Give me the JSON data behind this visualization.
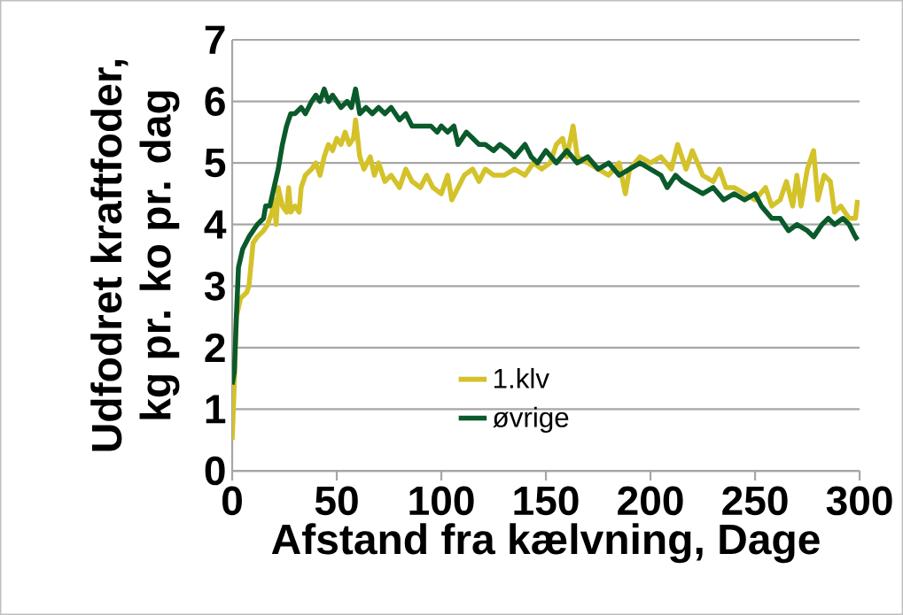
{
  "chart_data": {
    "type": "line",
    "xlabel": "Afstand fra kælvning, Dage",
    "ylabel": "Udfodret kraftfoder, kg pr. ko pr. dag",
    "xlim": [
      0,
      300
    ],
    "xticks": [
      0,
      50,
      100,
      150,
      200,
      250,
      300
    ],
    "ylim": [
      0,
      7
    ],
    "yticks": [
      0,
      1,
      2,
      3,
      4,
      5,
      6,
      7
    ],
    "grid": "y",
    "legend": "bottom",
    "marker": "none",
    "line_style": "solid",
    "series": [
      {
        "name": "1.klv",
        "color": "#d4c22a",
        "x": [
          0,
          1,
          2,
          4,
          7,
          8,
          10,
          12,
          15,
          17,
          19,
          20,
          21,
          22,
          24,
          26,
          27,
          28,
          30,
          32,
          33,
          35,
          38,
          40,
          42,
          44,
          46,
          48,
          50,
          52,
          54,
          56,
          58,
          59,
          61,
          63,
          66,
          68,
          70,
          73,
          76,
          80,
          83,
          86,
          90,
          93,
          96,
          100,
          103,
          105,
          108,
          111,
          115,
          118,
          121,
          125,
          130,
          135,
          140,
          144,
          148,
          152,
          155,
          158,
          160,
          163,
          165,
          170,
          175,
          180,
          185,
          188,
          190,
          195,
          200,
          205,
          210,
          213,
          217,
          220,
          225,
          230,
          233,
          236,
          240,
          245,
          250,
          255,
          258,
          262,
          265,
          268,
          270,
          272,
          275,
          278,
          280,
          283,
          286,
          288,
          291,
          295,
          298,
          299
        ],
        "values": [
          0.5,
          1.4,
          2.5,
          2.8,
          2.9,
          3.0,
          3.7,
          3.8,
          3.9,
          4.0,
          4.2,
          4.4,
          4.0,
          4.6,
          4.3,
          4.2,
          4.6,
          4.2,
          4.3,
          4.2,
          4.6,
          4.8,
          4.9,
          5.0,
          4.8,
          5.1,
          5.3,
          5.2,
          5.4,
          5.3,
          5.5,
          5.3,
          5.4,
          5.7,
          5.1,
          4.9,
          5.1,
          4.8,
          5.0,
          4.7,
          4.8,
          4.6,
          4.9,
          4.7,
          4.6,
          4.8,
          4.6,
          4.5,
          4.8,
          4.4,
          4.6,
          4.8,
          4.9,
          4.7,
          4.9,
          4.8,
          4.8,
          4.9,
          4.8,
          5.0,
          4.9,
          5.0,
          5.3,
          5.4,
          5.1,
          5.6,
          5.1,
          5.0,
          4.9,
          4.8,
          5.0,
          4.5,
          4.9,
          5.1,
          5.0,
          5.1,
          4.9,
          5.3,
          4.9,
          5.2,
          4.8,
          4.7,
          4.9,
          4.6,
          4.6,
          4.5,
          4.4,
          4.6,
          4.3,
          4.4,
          4.7,
          4.3,
          4.8,
          4.3,
          4.9,
          5.2,
          4.4,
          4.8,
          4.7,
          4.2,
          4.3,
          4.1,
          4.1,
          4.4
        ]
      },
      {
        "name": "øvrige",
        "color": "#0b5a2b",
        "x": [
          0,
          1,
          2,
          3,
          5,
          8,
          12,
          15,
          16,
          18,
          20,
          22,
          24,
          26,
          28,
          30,
          33,
          35,
          38,
          40,
          42,
          44,
          46,
          48,
          50,
          52,
          55,
          57,
          59,
          61,
          64,
          67,
          70,
          73,
          76,
          80,
          83,
          86,
          90,
          95,
          98,
          100,
          103,
          106,
          108,
          112,
          115,
          118,
          121,
          125,
          128,
          132,
          135,
          140,
          143,
          146,
          150,
          155,
          160,
          165,
          170,
          175,
          180,
          185,
          190,
          195,
          200,
          205,
          208,
          212,
          215,
          220,
          225,
          230,
          235,
          240,
          245,
          250,
          253,
          258,
          262,
          266,
          270,
          275,
          278,
          282,
          285,
          288,
          292,
          295,
          298,
          299
        ],
        "values": [
          1.4,
          1.6,
          2.5,
          3.3,
          3.6,
          3.8,
          4.0,
          4.1,
          4.3,
          4.3,
          4.6,
          4.9,
          5.3,
          5.6,
          5.8,
          5.8,
          5.9,
          5.8,
          6.0,
          6.1,
          6.0,
          6.2,
          6.0,
          6.1,
          6.0,
          5.9,
          6.0,
          5.9,
          6.2,
          5.8,
          5.9,
          5.8,
          5.9,
          5.8,
          5.9,
          5.7,
          5.8,
          5.6,
          5.6,
          5.6,
          5.5,
          5.6,
          5.5,
          5.6,
          5.3,
          5.5,
          5.4,
          5.3,
          5.3,
          5.2,
          5.3,
          5.2,
          5.1,
          5.3,
          5.1,
          5.0,
          5.2,
          5.0,
          5.2,
          5.0,
          5.1,
          4.9,
          5.0,
          4.8,
          4.9,
          5.0,
          4.9,
          4.8,
          4.6,
          4.8,
          4.7,
          4.6,
          4.5,
          4.6,
          4.4,
          4.5,
          4.4,
          4.5,
          4.3,
          4.1,
          4.1,
          3.9,
          4.0,
          3.9,
          3.8,
          4.0,
          4.1,
          4.0,
          4.1,
          4.0,
          3.8,
          3.75
        ]
      }
    ]
  }
}
